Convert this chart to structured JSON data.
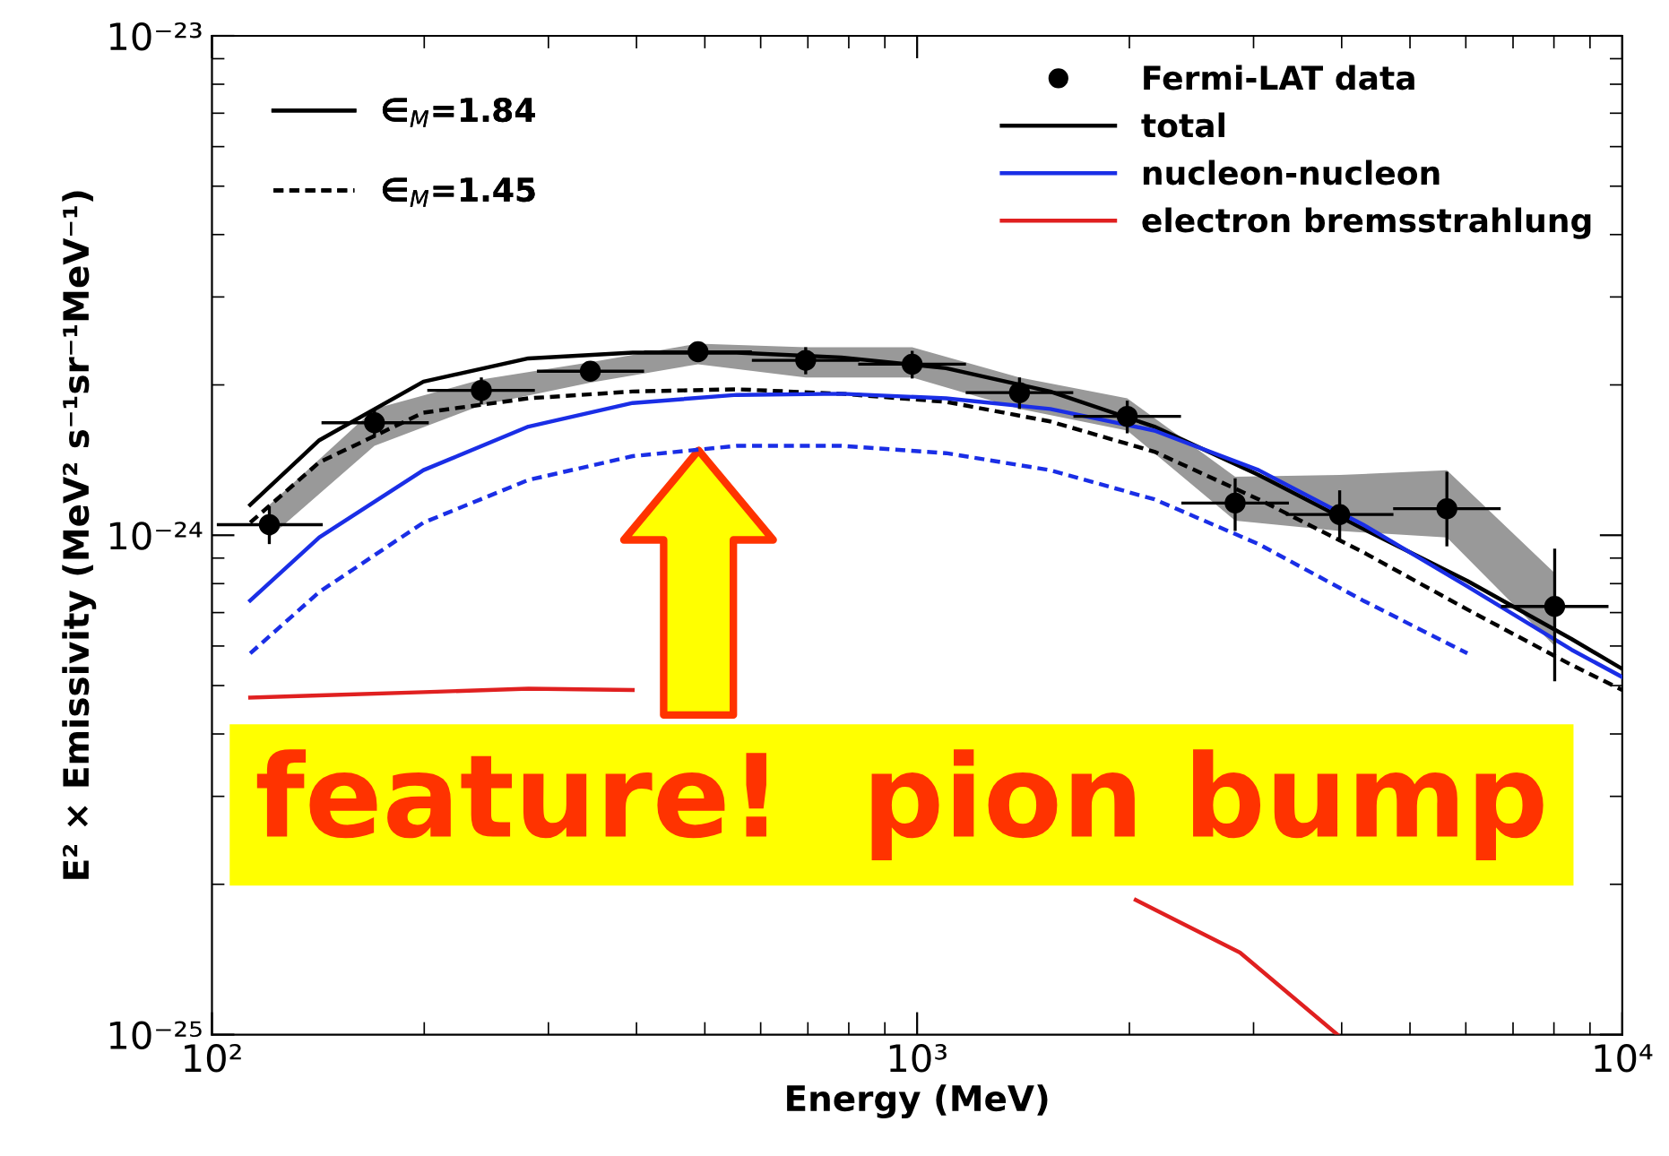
{
  "chart_data": {
    "type": "line",
    "xlabel": "Energy (MeV)",
    "ylabel": "E² × Emissivity (MeV² s⁻¹sr⁻¹MeV⁻¹)",
    "log": "xy",
    "xlim": [
      100,
      10000
    ],
    "xticks": [
      {
        "value": 100,
        "label": "10²"
      },
      {
        "value": 1000,
        "label": "10³"
      },
      {
        "value": 10000,
        "label": "10⁴"
      }
    ],
    "ylim": [
      1e-25,
      1e-23
    ],
    "yticks": [
      {
        "value": 1e-25,
        "label": "10⁻²⁵"
      },
      {
        "value": 1e-24,
        "label": "10⁻²⁴"
      },
      {
        "value": 1e-23,
        "label": "10⁻²³"
      }
    ],
    "grid": false,
    "legend": "top right",
    "annotations": [
      "∈$_{M}$=1.84",
      "∈$_{M}$=1.45",
      "feature!  pion bump"
    ],
    "series": [
      {
        "name": "Fermi-LAT data",
        "type": "scatter",
        "marker": "circle",
        "color": "#000000",
        "x": [
          120.6,
          170,
          241,
          344,
          489,
          695,
          984,
          1397,
          1986,
          2825,
          3974,
          5640,
          8020
        ],
        "values": [
          1.05e-24,
          1.68e-24,
          1.95e-24,
          2.13e-24,
          2.33e-24,
          2.24e-24,
          2.2e-24,
          1.93e-24,
          1.73e-24,
          1.16e-24,
          1.1e-24,
          1.13e-24,
          7.2e-25
        ],
        "errors": [
          9e-26,
          1.1e-25,
          1.2e-25,
          8e-26,
          8e-26,
          1.4e-25,
          1.4e-25,
          1.4e-25,
          1.3e-25,
          1.4e-25,
          1.3e-25,
          [
            9.5e-25,
            1.34e-24
          ],
          [
            5.1e-25,
            9.4e-25
          ]
        ],
        "xerrors": [
          [
            101.6,
            143.6
          ],
          [
            143,
            203
          ],
          [
            202,
            287
          ],
          [
            289,
            410
          ],
          [
            410,
            583
          ],
          [
            583,
            828
          ],
          [
            825,
            1173
          ],
          [
            1172,
            1665
          ],
          [
            1666,
            2367
          ],
          [
            2370,
            3367
          ],
          [
            3334,
            4737
          ],
          [
            4732,
            6723
          ],
          [
            6729,
            9560
          ]
        ],
        "lower": [
          9.9e-25,
          1.51e-24,
          1.82e-24,
          2.02e-24,
          2.2e-24,
          2.07e-24,
          2.07e-24,
          1.79e-24,
          1.62e-24,
          1.07e-24,
          1.02e-24,
          9.9e-25,
          6e-25
        ],
        "upper": [
          1.15e-24,
          1.79e-24,
          2.05e-24,
          2.22e-24,
          2.42e-24,
          2.38e-24,
          2.38e-24,
          2.07e-24,
          1.88e-24,
          1.31e-24,
          1.32e-24,
          1.35e-24,
          8.4e-25
        ]
      },
      {
        "name": "total",
        "line_style": "solid",
        "color": "#000000",
        "x": [
          113.3,
          142,
          199.5,
          281,
          395,
          555,
          781,
          1099,
          1544,
          2170,
          3050,
          4290,
          6030,
          8470,
          10000
        ],
        "values": [
          1.15e-24,
          1.55e-24,
          2.03e-24,
          2.26e-24,
          2.32e-24,
          2.32e-24,
          2.27e-24,
          2.16e-24,
          1.94e-24,
          1.65e-24,
          1.32e-24,
          1.03e-24,
          8.1e-25,
          6.2e-25,
          5.4e-25
        ]
      },
      {
        "line_style": "dashed",
        "color": "#000000",
        "x": [
          113.3,
          142,
          199.5,
          281,
          395,
          555,
          781,
          1099,
          1544,
          2170,
          3050,
          4290,
          6030,
          8470,
          10000
        ],
        "values": [
          1.06e-24,
          1.4e-24,
          1.76e-24,
          1.88e-24,
          1.94e-24,
          1.96e-24,
          1.92e-24,
          1.85e-24,
          1.69e-24,
          1.47e-24,
          1.18e-24,
          9.25e-25,
          7.1e-25,
          5.5e-25,
          4.9e-25
        ]
      },
      {
        "name": "nucleon-nucleon",
        "line_style": "solid",
        "color": "#1a2ee6",
        "x": [
          113.3,
          142,
          199.5,
          281,
          395,
          555,
          781,
          1099,
          1544,
          2170,
          3050,
          4290,
          6030,
          8470,
          10000
        ],
        "values": [
          7.4e-25,
          9.9e-25,
          1.35e-24,
          1.65e-24,
          1.84e-24,
          1.91e-24,
          1.92e-24,
          1.88e-24,
          1.79e-24,
          1.62e-24,
          1.35e-24,
          1.05e-24,
          7.9e-25,
          5.9e-25,
          5.2e-25
        ]
      },
      {
        "line_style": "dashed",
        "color": "#1a2ee6",
        "x": [
          113.3,
          142,
          199.5,
          281,
          395,
          555,
          781,
          1099,
          1544,
          2170,
          3050,
          4290,
          6030
        ],
        "values": [
          5.8e-25,
          7.7e-25,
          1.06e-24,
          1.29e-24,
          1.44e-24,
          1.51e-24,
          1.51e-24,
          1.46e-24,
          1.35e-24,
          1.18e-24,
          9.6e-25,
          7.4e-25,
          5.8e-25
        ]
      },
      {
        "name": "electron bremsstrahlung",
        "line_style": "solid",
        "color": "#e02020",
        "x": [
          113.3,
          142,
          199.5,
          281,
          395,
          555,
          2042,
          2870,
          3945
        ],
        "values": [
          4.73e-25,
          4.78e-25,
          4.85e-25,
          4.93e-25,
          4.9e-25,
          null,
          1.86e-25,
          1.46e-25,
          1e-25
        ]
      }
    ]
  }
}
